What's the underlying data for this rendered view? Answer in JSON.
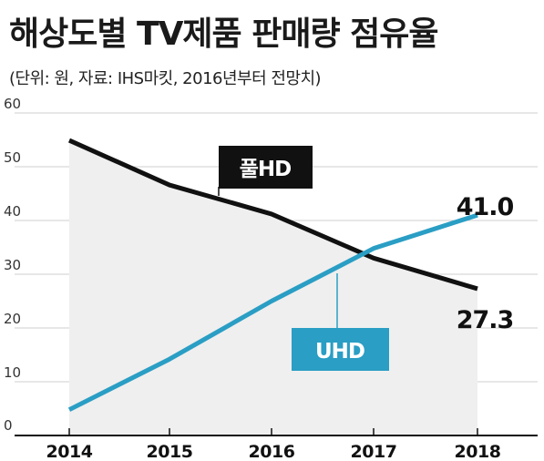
{
  "header": {
    "title": "해상도별 TV제품 판매량 점유율",
    "subtitle": "(단위: 원, 자료: IHS마킷, 2016년부터 전망치)"
  },
  "colors": {
    "fullhd": "#111111",
    "uhd": "#2a9ec4",
    "area": "#efefef",
    "grid": "#cfcfcf"
  },
  "chart_data": {
    "type": "line",
    "categories": [
      "2014",
      "2015",
      "2016",
      "2017",
      "2018"
    ],
    "ylim": [
      0,
      60
    ],
    "yticks": [
      0,
      10,
      20,
      30,
      40,
      50,
      60
    ],
    "grid": true,
    "series": [
      {
        "name": "풀HD",
        "values": [
          54.9,
          46.6,
          41.2,
          33.0,
          27.3
        ]
      },
      {
        "name": "UHD",
        "values": [
          4.8,
          14.2,
          25.0,
          34.8,
          41.0
        ]
      }
    ],
    "annotations": [
      "41.0",
      "27.3"
    ]
  }
}
